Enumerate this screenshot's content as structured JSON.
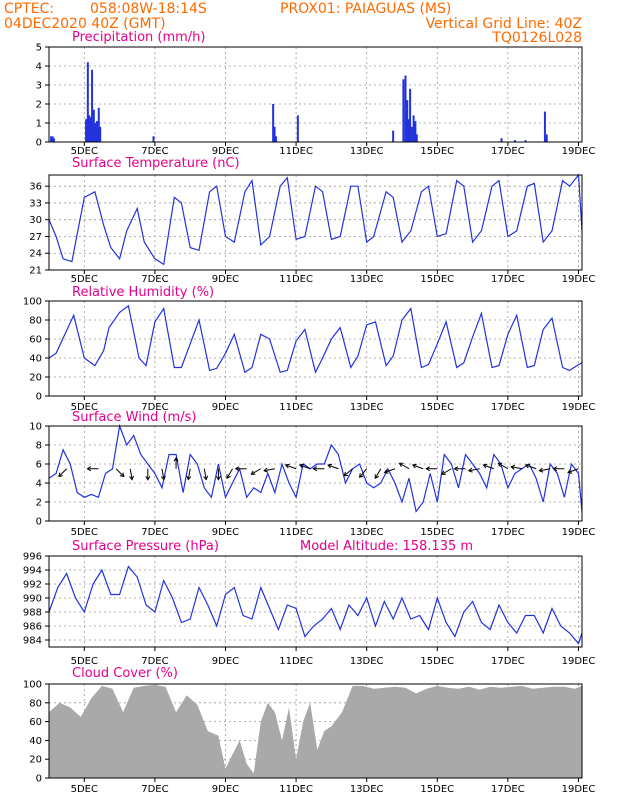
{
  "header": {
    "source": "CPTEC:",
    "coords": "058:08W-18:14S",
    "station": "PROX01: PAIAGUAS (MS)",
    "datetime": "04DEC2020 40Z (GMT)",
    "grid_note": "Vertical Grid Line: 40Z",
    "code": "TQ0126L028"
  },
  "colors": {
    "header": "#ff6a00",
    "title": "#e6008a",
    "series": "#2233dd",
    "cloud": "#a9a9a9",
    "grid": "#999999"
  },
  "x_axis": {
    "labels": [
      "5DEC",
      "7DEC",
      "9DEC",
      "11DEC",
      "13DEC",
      "15DEC",
      "17DEC",
      "19DEC"
    ],
    "ticks_day": [
      5,
      7,
      9,
      11,
      13,
      15,
      17,
      19
    ],
    "range_day": [
      4.0,
      19.1
    ]
  },
  "chart_data": [
    {
      "type": "bar",
      "title": "Precipitation (mm/h)",
      "ylim": [
        0,
        5
      ],
      "yticks": [
        0,
        1,
        2,
        3,
        4,
        5
      ],
      "series": [
        {
          "x_day": [
            4.06,
            4.1,
            4.14,
            5.05,
            5.1,
            5.14,
            5.18,
            5.22,
            5.27,
            5.31,
            5.36,
            5.41,
            5.45,
            6.96,
            10.35,
            10.39,
            10.43,
            11.05,
            14.04,
            14.1,
            14.15,
            14.19,
            14.23,
            14.28,
            14.33,
            14.38,
            14.42,
            13.75,
            16.82,
            17.2,
            17.5,
            18.05,
            18.1
          ],
          "values": [
            0.3,
            0.3,
            0.2,
            1.2,
            4.2,
            1.4,
            1.3,
            3.8,
            1.7,
            1.0,
            1.1,
            1.8,
            0.8,
            0.3,
            2.0,
            0.8,
            0.3,
            1.4,
            3.3,
            3.5,
            2.2,
            1.2,
            2.8,
            0.8,
            1.4,
            1.1,
            0.4,
            0.6,
            0.2,
            0.1,
            0.1,
            1.6,
            0.4
          ]
        }
      ]
    },
    {
      "type": "line",
      "title": "Surface Temperature (nC)",
      "ylim": [
        21,
        38
      ],
      "yticks": [
        21,
        24,
        27,
        30,
        33,
        36
      ],
      "series": [
        {
          "x_day": [
            4.0,
            4.2,
            4.4,
            4.65,
            5.0,
            5.3,
            5.55,
            5.75,
            6.0,
            6.2,
            6.5,
            6.7,
            7.0,
            7.25,
            7.55,
            7.75,
            8.0,
            8.25,
            8.55,
            8.75,
            9.0,
            9.25,
            9.55,
            9.75,
            10.0,
            10.25,
            10.55,
            10.75,
            11.0,
            11.25,
            11.55,
            11.75,
            12.0,
            12.25,
            12.55,
            12.75,
            13.0,
            13.2,
            13.55,
            13.75,
            14.0,
            14.25,
            14.55,
            14.75,
            15.0,
            15.25,
            15.55,
            15.75,
            16.0,
            16.25,
            16.55,
            16.75,
            17.0,
            17.25,
            17.55,
            17.75,
            18.0,
            18.25,
            18.55,
            18.75,
            19.0,
            19.1
          ],
          "values": [
            30,
            27,
            23,
            22.5,
            34,
            35,
            29,
            25,
            23,
            28,
            32,
            26,
            23,
            22,
            34,
            33,
            25,
            24.5,
            35,
            36,
            27,
            26,
            35,
            37,
            25.5,
            27,
            36,
            37.5,
            26.5,
            27,
            36,
            35,
            26.5,
            27,
            36,
            36,
            26,
            27,
            35,
            34,
            26,
            28,
            35,
            36,
            27,
            27.5,
            37,
            36,
            26,
            28,
            36,
            37,
            27,
            28,
            36,
            36.5,
            26,
            28,
            37,
            36,
            38,
            28
          ]
        }
      ]
    },
    {
      "type": "line",
      "title": "Relative Humidity (%)",
      "ylim": [
        0,
        100
      ],
      "yticks": [
        0,
        20,
        40,
        60,
        80,
        100
      ],
      "series": [
        {
          "x_day": [
            4.0,
            4.2,
            4.45,
            4.7,
            5.0,
            5.3,
            5.55,
            5.7,
            6.0,
            6.25,
            6.55,
            6.75,
            7.0,
            7.25,
            7.55,
            7.75,
            8.0,
            8.25,
            8.55,
            8.75,
            9.0,
            9.25,
            9.55,
            9.75,
            10.0,
            10.25,
            10.55,
            10.75,
            11.0,
            11.25,
            11.55,
            11.75,
            12.0,
            12.25,
            12.55,
            12.75,
            13.0,
            13.25,
            13.55,
            13.75,
            14.0,
            14.25,
            14.55,
            14.75,
            15.0,
            15.25,
            15.55,
            15.75,
            16.0,
            16.25,
            16.55,
            16.75,
            17.0,
            17.25,
            17.55,
            17.75,
            18.0,
            18.25,
            18.55,
            18.75,
            19.0,
            19.1
          ],
          "values": [
            40,
            45,
            65,
            85,
            40,
            32,
            48,
            72,
            88,
            95,
            40,
            32,
            78,
            92,
            30,
            30,
            55,
            80,
            27,
            29,
            45,
            65,
            25,
            30,
            65,
            60,
            25,
            27,
            58,
            70,
            25,
            40,
            60,
            72,
            30,
            42,
            75,
            78,
            32,
            42,
            80,
            92,
            30,
            33,
            55,
            78,
            30,
            35,
            62,
            87,
            30,
            32,
            65,
            85,
            30,
            32,
            70,
            82,
            30,
            27,
            33,
            35
          ]
        }
      ]
    },
    {
      "type": "line",
      "title": "Surface Wind (m/s)",
      "ylim": [
        0,
        10
      ],
      "yticks": [
        0,
        2,
        4,
        6,
        8,
        10
      ],
      "series": [
        {
          "x_day": [
            4.0,
            4.2,
            4.4,
            4.6,
            4.8,
            5.0,
            5.2,
            5.4,
            5.6,
            5.8,
            6.0,
            6.2,
            6.4,
            6.6,
            6.8,
            7.0,
            7.2,
            7.4,
            7.6,
            7.8,
            8.0,
            8.2,
            8.4,
            8.6,
            8.8,
            9.0,
            9.2,
            9.4,
            9.6,
            9.8,
            10.0,
            10.2,
            10.4,
            10.6,
            10.8,
            11.0,
            11.2,
            11.4,
            11.6,
            11.8,
            12.0,
            12.2,
            12.4,
            12.6,
            12.8,
            13.0,
            13.2,
            13.4,
            13.6,
            13.8,
            14.0,
            14.2,
            14.4,
            14.6,
            14.8,
            15.0,
            15.2,
            15.4,
            15.6,
            15.8,
            16.0,
            16.2,
            16.4,
            16.6,
            16.8,
            17.0,
            17.2,
            17.4,
            17.6,
            17.8,
            18.0,
            18.2,
            18.4,
            18.6,
            18.8,
            19.0,
            19.1
          ],
          "values": [
            4.5,
            5.0,
            7.5,
            6.0,
            3.0,
            2.5,
            2.8,
            2.5,
            5.0,
            5.5,
            10.0,
            8.0,
            9.0,
            7.0,
            6.0,
            5.0,
            3.5,
            7.0,
            7.0,
            3.0,
            7.0,
            6.0,
            3.5,
            2.5,
            6.0,
            2.5,
            4.0,
            5.5,
            2.5,
            3.5,
            3.0,
            5.0,
            3.0,
            6.0,
            4.0,
            2.5,
            6.0,
            5.5,
            6.0,
            6.0,
            8.0,
            7.0,
            4.0,
            5.5,
            6.0,
            4.0,
            3.5,
            4.0,
            5.5,
            4.0,
            2.0,
            4.5,
            1.0,
            2.0,
            5.0,
            2.0,
            7.0,
            6.0,
            3.5,
            7.0,
            6.0,
            5.0,
            3.5,
            7.0,
            6.0,
            3.5,
            5.0,
            5.5,
            6.0,
            4.5,
            2.0,
            6.0,
            5.0,
            2.5,
            6.0,
            5.0,
            1.0
          ]
        }
      ],
      "arrows": {
        "x_day": [
          4.5,
          5.4,
          5.9,
          6.3,
          6.8,
          7.2,
          7.6,
          8.0,
          8.4,
          8.8,
          9.2,
          9.6,
          10.0,
          10.4,
          11.0,
          11.4,
          11.8,
          12.2,
          12.6,
          13.0,
          13.4,
          13.8,
          14.2,
          14.6,
          15.0,
          15.4,
          15.8,
          16.2,
          16.6,
          17.0,
          17.4,
          17.8,
          18.2,
          18.6,
          19.0
        ],
        "dir_deg": [
          135,
          180,
          45,
          80,
          90,
          80,
          270,
          100,
          80,
          90,
          120,
          180,
          150,
          170,
          200,
          200,
          180,
          200,
          140,
          130,
          120,
          160,
          210,
          200,
          180,
          150,
          180,
          170,
          200,
          210,
          190,
          200,
          170,
          180,
          160
        ]
      }
    },
    {
      "type": "line",
      "title": "Surface Pressure (hPa)",
      "subtitle": "Model Altitude: 158.135 m",
      "ylim": [
        983,
        996
      ],
      "yticks": [
        984,
        986,
        988,
        990,
        992,
        994,
        996
      ],
      "series": [
        {
          "x_day": [
            4.0,
            4.25,
            4.5,
            4.75,
            5.0,
            5.25,
            5.5,
            5.75,
            6.0,
            6.25,
            6.5,
            6.75,
            7.0,
            7.25,
            7.5,
            7.75,
            8.0,
            8.25,
            8.5,
            8.75,
            9.0,
            9.25,
            9.5,
            9.75,
            10.0,
            10.25,
            10.5,
            10.75,
            11.0,
            11.25,
            11.5,
            11.75,
            12.0,
            12.25,
            12.5,
            12.75,
            13.0,
            13.25,
            13.5,
            13.75,
            14.0,
            14.25,
            14.5,
            14.75,
            15.0,
            15.25,
            15.5,
            15.75,
            16.0,
            16.25,
            16.5,
            16.75,
            17.0,
            17.25,
            17.5,
            17.75,
            18.0,
            18.25,
            18.5,
            18.75,
            19.0,
            19.1
          ],
          "values": [
            988,
            991.5,
            993.5,
            990,
            988,
            992,
            994,
            990.5,
            990.5,
            994.5,
            993,
            989,
            988,
            992.5,
            990,
            986.5,
            987,
            991.5,
            989,
            986,
            990.5,
            991.5,
            987.5,
            987,
            991.5,
            988.5,
            985.5,
            989,
            988.5,
            984.5,
            986,
            987,
            988.5,
            985.5,
            989,
            987.5,
            990,
            986,
            989.5,
            987,
            990,
            987,
            987.5,
            985.5,
            990,
            986.5,
            984.5,
            988,
            989.5,
            986.5,
            985.5,
            989,
            986.5,
            985,
            987.5,
            987.5,
            985,
            988.5,
            986,
            985,
            983.5,
            985
          ]
        }
      ]
    },
    {
      "type": "area",
      "title": "Cloud Cover (%)",
      "ylim": [
        0,
        100
      ],
      "yticks": [
        0,
        20,
        40,
        60,
        80,
        100
      ],
      "series": [
        {
          "x_day": [
            4.0,
            4.3,
            4.6,
            4.9,
            5.2,
            5.5,
            5.8,
            6.1,
            6.4,
            6.7,
            7.0,
            7.3,
            7.6,
            7.9,
            8.2,
            8.5,
            8.8,
            9.0,
            9.2,
            9.4,
            9.6,
            9.8,
            10.0,
            10.2,
            10.4,
            10.6,
            10.8,
            11.0,
            11.2,
            11.4,
            11.6,
            11.8,
            12.0,
            12.3,
            12.6,
            12.9,
            13.2,
            13.5,
            13.8,
            14.1,
            14.4,
            14.7,
            15.0,
            15.3,
            15.6,
            15.9,
            16.2,
            16.5,
            16.8,
            17.1,
            17.4,
            17.7,
            18.0,
            18.3,
            18.6,
            18.9,
            19.1
          ],
          "values": [
            70,
            80,
            75,
            65,
            85,
            98,
            95,
            70,
            96,
            98,
            99,
            97,
            70,
            88,
            78,
            50,
            45,
            10,
            25,
            40,
            15,
            5,
            60,
            80,
            70,
            40,
            75,
            20,
            60,
            80,
            30,
            50,
            55,
            70,
            98,
            98,
            95,
            96,
            97,
            96,
            90,
            95,
            98,
            96,
            95,
            97,
            94,
            97,
            96,
            97,
            98,
            95,
            96,
            97,
            97,
            95,
            98
          ]
        }
      ]
    }
  ]
}
